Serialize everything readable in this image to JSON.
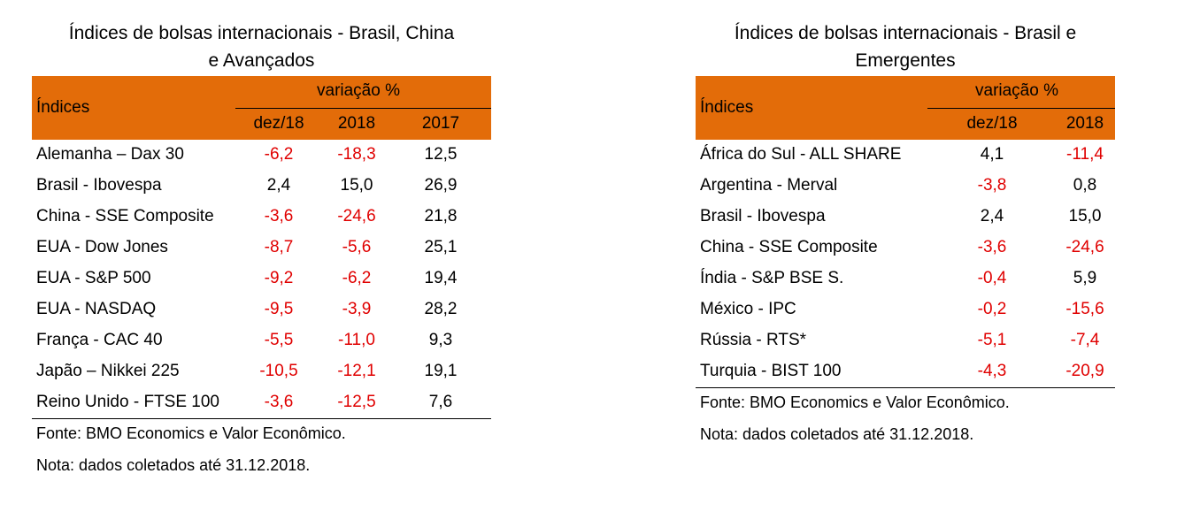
{
  "left_table": {
    "title_line1": "Índices de bolsas internacionais - Brasil, China",
    "title_line2": "e Avançados",
    "header_label": "Índices",
    "header_group": "variação %",
    "columns": [
      "dez/18",
      "2018",
      "2017"
    ],
    "rows": [
      {
        "name": "Alemanha – Dax 30",
        "values": [
          "-6,2",
          "-18,3",
          "12,5"
        ]
      },
      {
        "name": "Brasil - Ibovespa",
        "values": [
          "2,4",
          "15,0",
          "26,9"
        ]
      },
      {
        "name": "China - SSE Composite",
        "values": [
          "-3,6",
          "-24,6",
          "21,8"
        ]
      },
      {
        "name": "EUA - Dow Jones",
        "values": [
          "-8,7",
          "-5,6",
          "25,1"
        ]
      },
      {
        "name": "EUA - S&P 500",
        "values": [
          "-9,2",
          "-6,2",
          "19,4"
        ]
      },
      {
        "name": "EUA -  NASDAQ",
        "values": [
          "-9,5",
          "-3,9",
          "28,2"
        ]
      },
      {
        "name": "França -  CAC 40",
        "values": [
          "-5,5",
          "-11,0",
          "9,3"
        ]
      },
      {
        "name": "Japão – Nikkei 225",
        "values": [
          "-10,5",
          "-12,1",
          "19,1"
        ]
      },
      {
        "name": "Reino Unido - FTSE 100",
        "values": [
          "-3,6",
          "-12,5",
          "7,6"
        ]
      }
    ],
    "source": "Fonte: BMO Economics e Valor Econômico.",
    "note": "Nota: dados coletados até 31.12.2018."
  },
  "right_table": {
    "title_line1": "Índices de bolsas internacionais - Brasil e",
    "title_line2": "Emergentes",
    "header_label": "Índices",
    "header_group": "variação %",
    "columns": [
      "dez/18",
      "2018"
    ],
    "rows": [
      {
        "name": "África do Sul - ALL SHARE",
        "values": [
          "4,1",
          "-11,4"
        ]
      },
      {
        "name": "Argentina - Merval",
        "values": [
          "-3,8",
          "0,8"
        ]
      },
      {
        "name": "Brasil - Ibovespa",
        "values": [
          "2,4",
          "15,0"
        ]
      },
      {
        "name": "China - SSE Composite",
        "values": [
          "-3,6",
          "-24,6"
        ]
      },
      {
        "name": "Índia - S&P BSE S.",
        "values": [
          "-0,4",
          "5,9"
        ]
      },
      {
        "name": "México - IPC",
        "values": [
          "-0,2",
          "-15,6"
        ]
      },
      {
        "name": "Rússia - RTS*",
        "values": [
          "-5,1",
          "-7,4"
        ]
      },
      {
        "name": "Turquia - BIST 100",
        "values": [
          "-4,3",
          "-20,9"
        ]
      }
    ],
    "source": "Fonte: BMO Economics e Valor Econômico.",
    "note": "Nota: dados coletados até 31.12.2018."
  },
  "colors": {
    "header_bg": "#E36C09",
    "negative": "#E00000",
    "positive": "#000000"
  }
}
